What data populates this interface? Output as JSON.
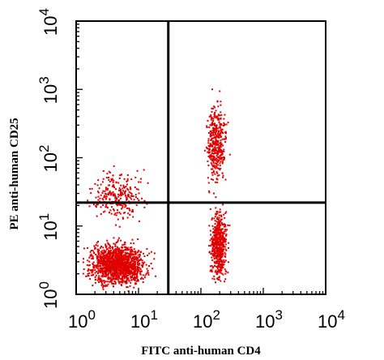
{
  "chart_data": {
    "type": "scatter",
    "xlabel": "FITC anti-human CD4",
    "ylabel": "PE anti-human CD25",
    "x_scale": "log",
    "y_scale": "log",
    "xlim": [
      1,
      10000
    ],
    "ylim": [
      1,
      10000
    ],
    "x_ticks": [
      {
        "base": "10",
        "exp": "0"
      },
      {
        "base": "10",
        "exp": "1"
      },
      {
        "base": "10",
        "exp": "2"
      },
      {
        "base": "10",
        "exp": "3"
      },
      {
        "base": "10",
        "exp": "4"
      }
    ],
    "y_ticks": [
      {
        "base": "10",
        "exp": "0"
      },
      {
        "base": "10",
        "exp": "1"
      },
      {
        "base": "10",
        "exp": "2"
      },
      {
        "base": "10",
        "exp": "3"
      },
      {
        "base": "10",
        "exp": "4"
      }
    ],
    "quadrant_gates": {
      "x": 30,
      "y": 22
    },
    "point_color": "#e00000",
    "populations": [
      {
        "x_range": [
          1,
          20
        ],
        "y_range": [
          1,
          8
        ],
        "approx_count": 1400
      },
      {
        "x_range": [
          1,
          20
        ],
        "y_range": [
          8,
          100
        ],
        "approx_count": 260
      },
      {
        "x_range": [
          120,
          300
        ],
        "y_range": [
          1,
          30
        ],
        "approx_count": 550
      },
      {
        "x_range": [
          100,
          300
        ],
        "y_range": [
          20,
          1300
        ],
        "approx_count": 380
      }
    ],
    "grid": false,
    "legend": "none"
  }
}
